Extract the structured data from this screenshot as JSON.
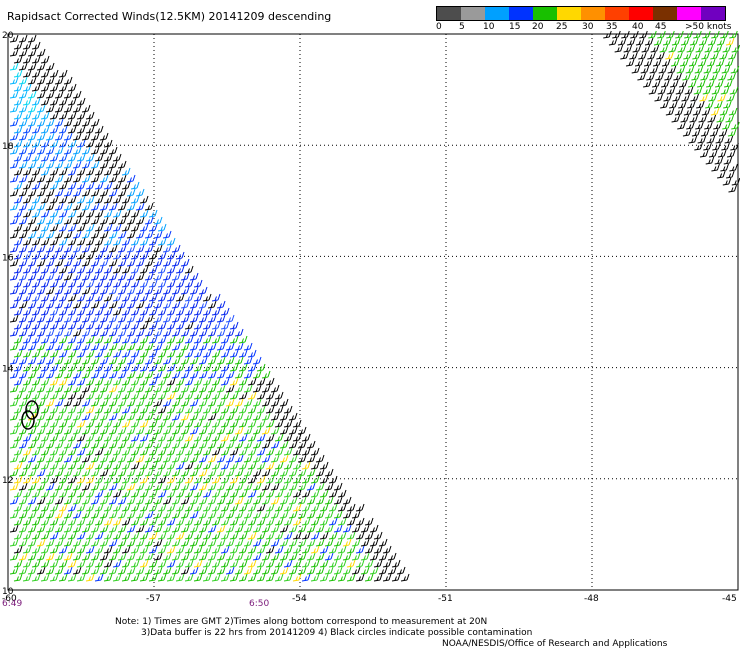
{
  "title": "Rapidsact Corrected Winds(12.5KM) 20141209 descending",
  "scale": {
    "colors": [
      "#4d4d4d",
      "#9a9a9a",
      "#00a0ff",
      "#0033ff",
      "#18c000",
      "#ffd800",
      "#ff9000",
      "#ff4000",
      "#ff0000",
      "#7a3000",
      "#ff00ff",
      "#7000c0"
    ],
    "labels": [
      "0",
      "5",
      "10",
      "15",
      "20",
      "25",
      "30",
      "35",
      "40",
      "45",
      ">50 knots"
    ]
  },
  "map": {
    "lat_labels": [
      "20",
      "18",
      "16",
      "14",
      "12",
      "10"
    ],
    "lon_labels": [
      "-60",
      "-57",
      "-54",
      "-51",
      "-48",
      "-45"
    ],
    "times": [
      "6:49",
      "6:50"
    ]
  },
  "notes": {
    "line1": "Note: 1) Times are GMT 2)Times along bottom correspond to measurement at 20N",
    "line2": "3)Data buffer is 22 hrs from 20141209 4) Black circles indicate possible contamination",
    "line3": "NOAA/NESDIS/Office of Research and Applications"
  }
}
